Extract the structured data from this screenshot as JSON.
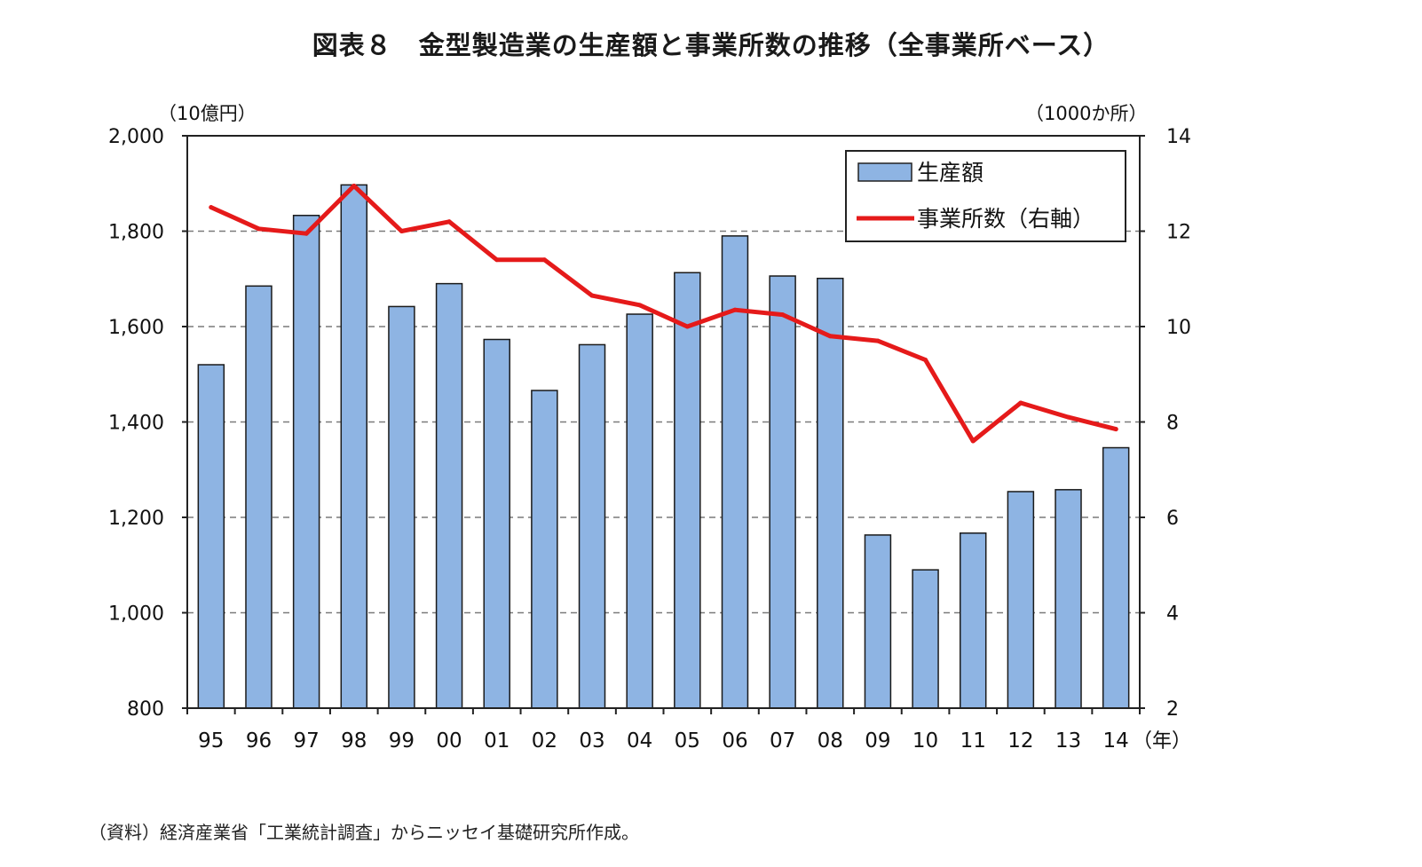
{
  "chart_data": {
    "type": "bar+line",
    "title": "図表８　金型製造業の生産額と事業所数の推移（全事業所ベース）",
    "left_axis_unit": "（10億円）",
    "right_axis_unit": "（1000か所）",
    "x_unit": "（年）",
    "categories": [
      "95",
      "96",
      "97",
      "98",
      "99",
      "00",
      "01",
      "02",
      "03",
      "04",
      "05",
      "06",
      "07",
      "08",
      "09",
      "10",
      "11",
      "12",
      "13",
      "14"
    ],
    "left_ylim": [
      800,
      2000
    ],
    "left_ticks": [
      800,
      1000,
      1200,
      1400,
      1600,
      1800,
      2000
    ],
    "left_tick_labels": [
      "800",
      "1,000",
      "1,200",
      "1,400",
      "1,600",
      "1,800",
      "2,000"
    ],
    "right_ylim": [
      2,
      14
    ],
    "right_ticks": [
      2,
      4,
      6,
      8,
      10,
      12,
      14
    ],
    "right_tick_labels": [
      "2",
      "4",
      "6",
      "8",
      "10",
      "12",
      "14"
    ],
    "series": [
      {
        "name": "生産額",
        "type": "bar",
        "axis": "left",
        "color": "#8EB4E3",
        "values": [
          1520,
          1685,
          1833,
          1897,
          1642,
          1690,
          1573,
          1466,
          1562,
          1626,
          1713,
          1790,
          1706,
          1701,
          1163,
          1090,
          1167,
          1254,
          1258,
          1346
        ]
      },
      {
        "name": "事業所数（右軸）",
        "type": "line",
        "axis": "right",
        "color": "#E51A1A",
        "values": [
          12.5,
          12.05,
          11.95,
          12.95,
          12.0,
          12.2,
          11.4,
          11.4,
          10.65,
          10.45,
          10.0,
          10.35,
          10.25,
          9.8,
          9.7,
          9.3,
          7.6,
          8.4,
          8.1,
          7.85
        ]
      }
    ],
    "legend_position": "top-right",
    "grid": true
  },
  "source_note": "（資料）経済産業省「工業統計調査」からニッセイ基礎研究所作成。"
}
